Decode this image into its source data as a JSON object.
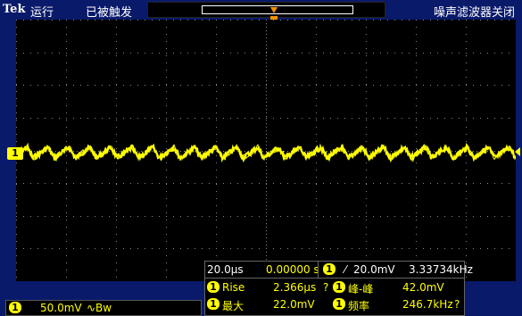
{
  "status_bar": {
    "brand": "Tek",
    "run_state": "运行",
    "trigger_state": "已被触发",
    "filter_label": "噪声滤波器关闭",
    "trigger_position_glyph": "T"
  },
  "channel": {
    "number": "1",
    "volts_per_div": "50.0mV",
    "coupling_bw": "∿Bw",
    "color": "#ffff00"
  },
  "timebase": {
    "time_per_div": "20.0μs",
    "delay": "0.00000 s",
    "trigger_channel": "1",
    "trigger_slope": "⁄",
    "trigger_level": "20.0mV",
    "trigger_freq": "3.33734kHz"
  },
  "measurements": {
    "rows": [
      {
        "ch": "1",
        "name": "Rise",
        "value": "2.366μs",
        "flag": "?"
      },
      {
        "ch": "1",
        "name": "峰-峰",
        "value": "42.0mV",
        "flag": ""
      },
      {
        "ch": "1",
        "name": "最大",
        "value": "22.0mV",
        "flag": ""
      },
      {
        "ch": "1",
        "name": "频率",
        "value": "246.7kHz",
        "flag": "?"
      }
    ]
  },
  "colors": {
    "frame": "#0a1a6a",
    "trace": "#ffff00",
    "trigger_marker": "#f29100",
    "grid_dots": "#888888"
  }
}
